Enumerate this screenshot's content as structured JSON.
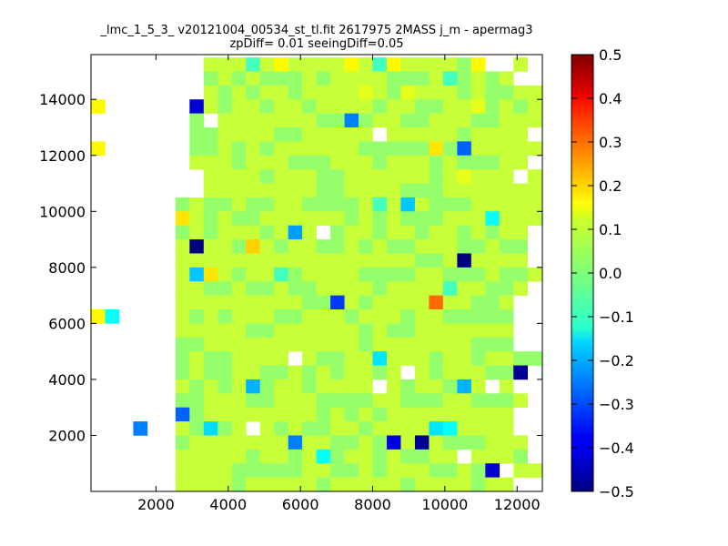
{
  "chart_data": {
    "type": "heatmap",
    "title_line1": "_lmc_1_5_3_ v20121004_00534_st_tl.fit 2617975 2MASS j_m - apermag3",
    "title_line2": "zpDiff= 0.01 seeingDiff=0.05",
    "xlim": [
      200,
      12700
    ],
    "ylim": [
      0,
      15600
    ],
    "x_ticks": [
      2000,
      4000,
      6000,
      8000,
      10000,
      12000
    ],
    "y_ticks": [
      2000,
      4000,
      6000,
      8000,
      10000,
      12000,
      14000
    ],
    "x_tick_labels": [
      "2000",
      "4000",
      "6000",
      "8000",
      "10000",
      "12000"
    ],
    "y_tick_labels": [
      "2000",
      "4000",
      "6000",
      "8000",
      "10000",
      "12000",
      "14000"
    ],
    "colorbar": {
      "colormap": "jet",
      "vmin": -0.5,
      "vmax": 0.5,
      "ticks": [
        0.5,
        0.4,
        0.3,
        0.2,
        0.1,
        0.0,
        -0.1,
        -0.2,
        -0.3,
        -0.4,
        -0.5
      ],
      "tick_labels": [
        "0.5",
        "0.4",
        "0.3",
        "0.2",
        "0.1",
        "0.0",
        "−0.1",
        "−0.2",
        "−0.3",
        "−0.4",
        "−0.5"
      ]
    },
    "grid": {
      "x0": 200,
      "dx": 390,
      "y0": 0,
      "dy": 500,
      "ncols": 32,
      "nrows": 31,
      "rows_top_to_bottom": [
        "________55535A5555A53A55554A__5___",
        "________4545444545555444534545____",
        "________545455455556546555454455__",
        "_______3545545545555455445564545__",
        "_______4-555555544445544555445554_",
        "_______4455554455555-5555545555_55",
        "_______4454545555554444454555555__",
        "_______555455544455545554544455___",
        "________5555455544555555456555-5__",
        "________555555554455554445555555__",
        "______4544544554444535554445555553",
        "______554544555555454544455545555_",
        "______4545554555545545545545455___",
        "______5555445455445454455544544___",
        "______5555555555555555544545555___",
        "______545545534555544445544454455_",
        "______5544544544555545555355445___",
        "______555555555444545555555445____",
        "______545455544555455545544444____",
        "______555554455555545445555555____",
        "______445555555555545555555444____",
        "______45445555-54455455545545544__",
        "______454455445454554545455544____",
        "______54545445545555_545545545____",
        "______4455544555444455444554445___",
        "______545555555545454555555555____",
        "______545455545445545555555555____",
        "______4555555555544545545444555___",
        "______55555455454455454455-5554___",
        "______55554444455445455544545555__",
        "______555545555545555545555455____"
      ],
      "legend": {
        "_": "empty",
        "3": "-0.06",
        "4": "0.02",
        "5": "0.07",
        "6": "0.1",
        "A": "0.13",
        "-": "empty"
      },
      "outliers": [
        {
          "x": 3100,
          "y": 13400,
          "value": -0.42
        },
        {
          "x": 7050,
          "y": 12900,
          "value": -0.25
        },
        {
          "x": 10200,
          "y": 12000,
          "value": -0.28
        },
        {
          "x": 9500,
          "y": 12000,
          "value": 0.15
        },
        {
          "x": 200,
          "y": 13500,
          "value": 0.13
        },
        {
          "x": 200,
          "y": 12000,
          "value": 0.13
        },
        {
          "x": 2400,
          "y": 9500,
          "value": 0.15
        },
        {
          "x": 8650,
          "y": 10000,
          "value": -0.18
        },
        {
          "x": 10950,
          "y": 9500,
          "value": -0.12
        },
        {
          "x": 12500,
          "y": 9500,
          "value": -0.08
        },
        {
          "x": 5500,
          "y": 9000,
          "value": -0.22
        },
        {
          "x": 6300,
          "y": 9000,
          "value": null
        },
        {
          "x": 3100,
          "y": 8600,
          "value": -0.5
        },
        {
          "x": 4650,
          "y": 8600,
          "value": 0.17
        },
        {
          "x": 10200,
          "y": 8000,
          "value": -0.5
        },
        {
          "x": 3100,
          "y": 7600,
          "value": -0.18
        },
        {
          "x": 3500,
          "y": 7600,
          "value": 0.15
        },
        {
          "x": 6650,
          "y": 6600,
          "value": -0.32
        },
        {
          "x": 9400,
          "y": 6600,
          "value": 0.27
        },
        {
          "x": 200,
          "y": 6100,
          "value": 0.13
        },
        {
          "x": 600,
          "y": 6100,
          "value": -0.12
        },
        {
          "x": 7850,
          "y": 4600,
          "value": -0.15
        },
        {
          "x": 8650,
          "y": 4100,
          "value": null
        },
        {
          "x": 11750,
          "y": 4100,
          "value": -0.48
        },
        {
          "x": 12500,
          "y": 4100,
          "value": -0.16
        },
        {
          "x": 4650,
          "y": 3600,
          "value": -0.2
        },
        {
          "x": 10200,
          "y": 3600,
          "value": -0.2
        },
        {
          "x": 10950,
          "y": 3600,
          "value": null
        },
        {
          "x": 2400,
          "y": 2700,
          "value": -0.28
        },
        {
          "x": 1200,
          "y": 2200,
          "value": -0.25
        },
        {
          "x": 3500,
          "y": 2200,
          "value": -0.16
        },
        {
          "x": 4650,
          "y": 2200,
          "value": null
        },
        {
          "x": 9500,
          "y": 2200,
          "value": -0.15
        },
        {
          "x": 9850,
          "y": 2200,
          "value": -0.12
        },
        {
          "x": 5500,
          "y": 1700,
          "value": -0.25
        },
        {
          "x": 8250,
          "y": 1700,
          "value": -0.4
        },
        {
          "x": 9050,
          "y": 1700,
          "value": -0.48
        },
        {
          "x": 6250,
          "y": 1200,
          "value": -0.12
        },
        {
          "x": 10950,
          "y": 700,
          "value": -0.42
        },
        {
          "x": 11350,
          "y": 700,
          "value": null
        }
      ]
    }
  }
}
